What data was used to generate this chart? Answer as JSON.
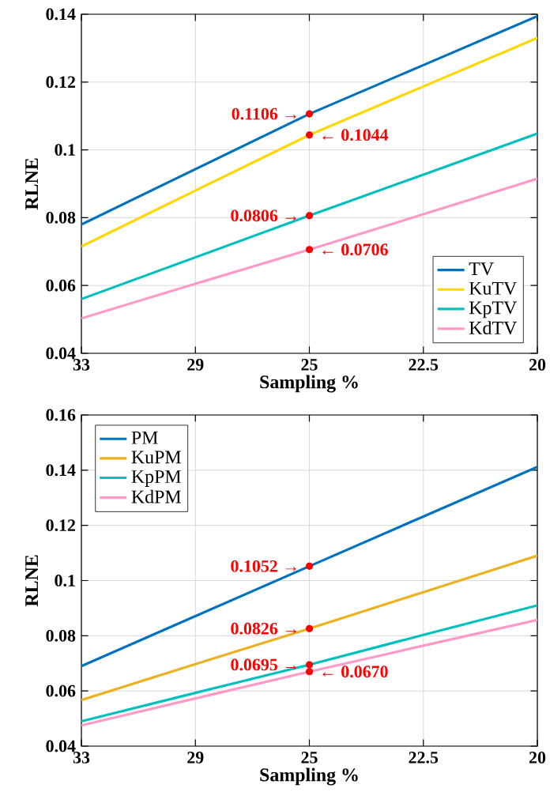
{
  "chart_data": [
    {
      "type": "line",
      "xlabel": "Sampling %",
      "ylabel": "RLNE",
      "categories": [
        "33",
        "29",
        "25",
        "22.5",
        "20"
      ],
      "series": [
        {
          "name": "TV",
          "color": "#0072bd",
          "values": [
            0.078,
            0.0943,
            0.1106,
            0.125,
            0.1394
          ]
        },
        {
          "name": "KuTV",
          "color": "#ffd700",
          "values": [
            0.0715,
            0.088,
            0.1044,
            0.1187,
            0.133
          ]
        },
        {
          "name": "KpTV",
          "color": "#00bfbf",
          "values": [
            0.056,
            0.0683,
            0.0806,
            0.0927,
            0.1048
          ]
        },
        {
          "name": "KdTV",
          "color": "#ff99c8",
          "values": [
            0.0503,
            0.0605,
            0.0706,
            0.081,
            0.0915
          ]
        }
      ],
      "ylim": [
        0.04,
        0.14
      ],
      "yticks": [
        0.04,
        0.06,
        0.08,
        0.1,
        0.12,
        0.14
      ],
      "grid": true,
      "legend": "bottom right",
      "marker": "none",
      "line_style": "solid",
      "annotations": [
        {
          "text": "0.1106 →",
          "x": "25",
          "y": 0.1106
        },
        {
          "text": "← 0.1044",
          "x": "25",
          "y": 0.1044
        },
        {
          "text": "0.0806 →",
          "x": "25",
          "y": 0.0806
        },
        {
          "text": "← 0.0706",
          "x": "25",
          "y": 0.0706
        }
      ]
    },
    {
      "type": "line",
      "xlabel": "Sampling %",
      "ylabel": "RLNE",
      "categories": [
        "33",
        "29",
        "25",
        "22.5",
        "20"
      ],
      "series": [
        {
          "name": "PM",
          "color": "#0072bd",
          "values": [
            0.069,
            0.0871,
            0.1052,
            0.1232,
            0.1412
          ]
        },
        {
          "name": "KuPM",
          "color": "#edb120",
          "values": [
            0.0567,
            0.0697,
            0.0826,
            0.0958,
            0.109
          ]
        },
        {
          "name": "KpPM",
          "color": "#00bfbf",
          "values": [
            0.049,
            0.0593,
            0.0695,
            0.0803,
            0.091
          ]
        },
        {
          "name": "KdPM",
          "color": "#ff99c8",
          "values": [
            0.0475,
            0.0573,
            0.067,
            0.0764,
            0.0857
          ]
        }
      ],
      "ylim": [
        0.04,
        0.16
      ],
      "yticks": [
        0.04,
        0.06,
        0.08,
        0.1,
        0.12,
        0.14,
        0.16
      ],
      "grid": true,
      "legend": "top left",
      "marker": "none",
      "line_style": "solid",
      "annotations": [
        {
          "text": "0.1052 →",
          "x": "25",
          "y": 0.1052
        },
        {
          "text": "0.0826 →",
          "x": "25",
          "y": 0.0826
        },
        {
          "text": "0.0695 →",
          "x": "25",
          "y": 0.0695
        },
        {
          "text": "← 0.0670",
          "x": "25",
          "y": 0.067
        }
      ]
    }
  ]
}
